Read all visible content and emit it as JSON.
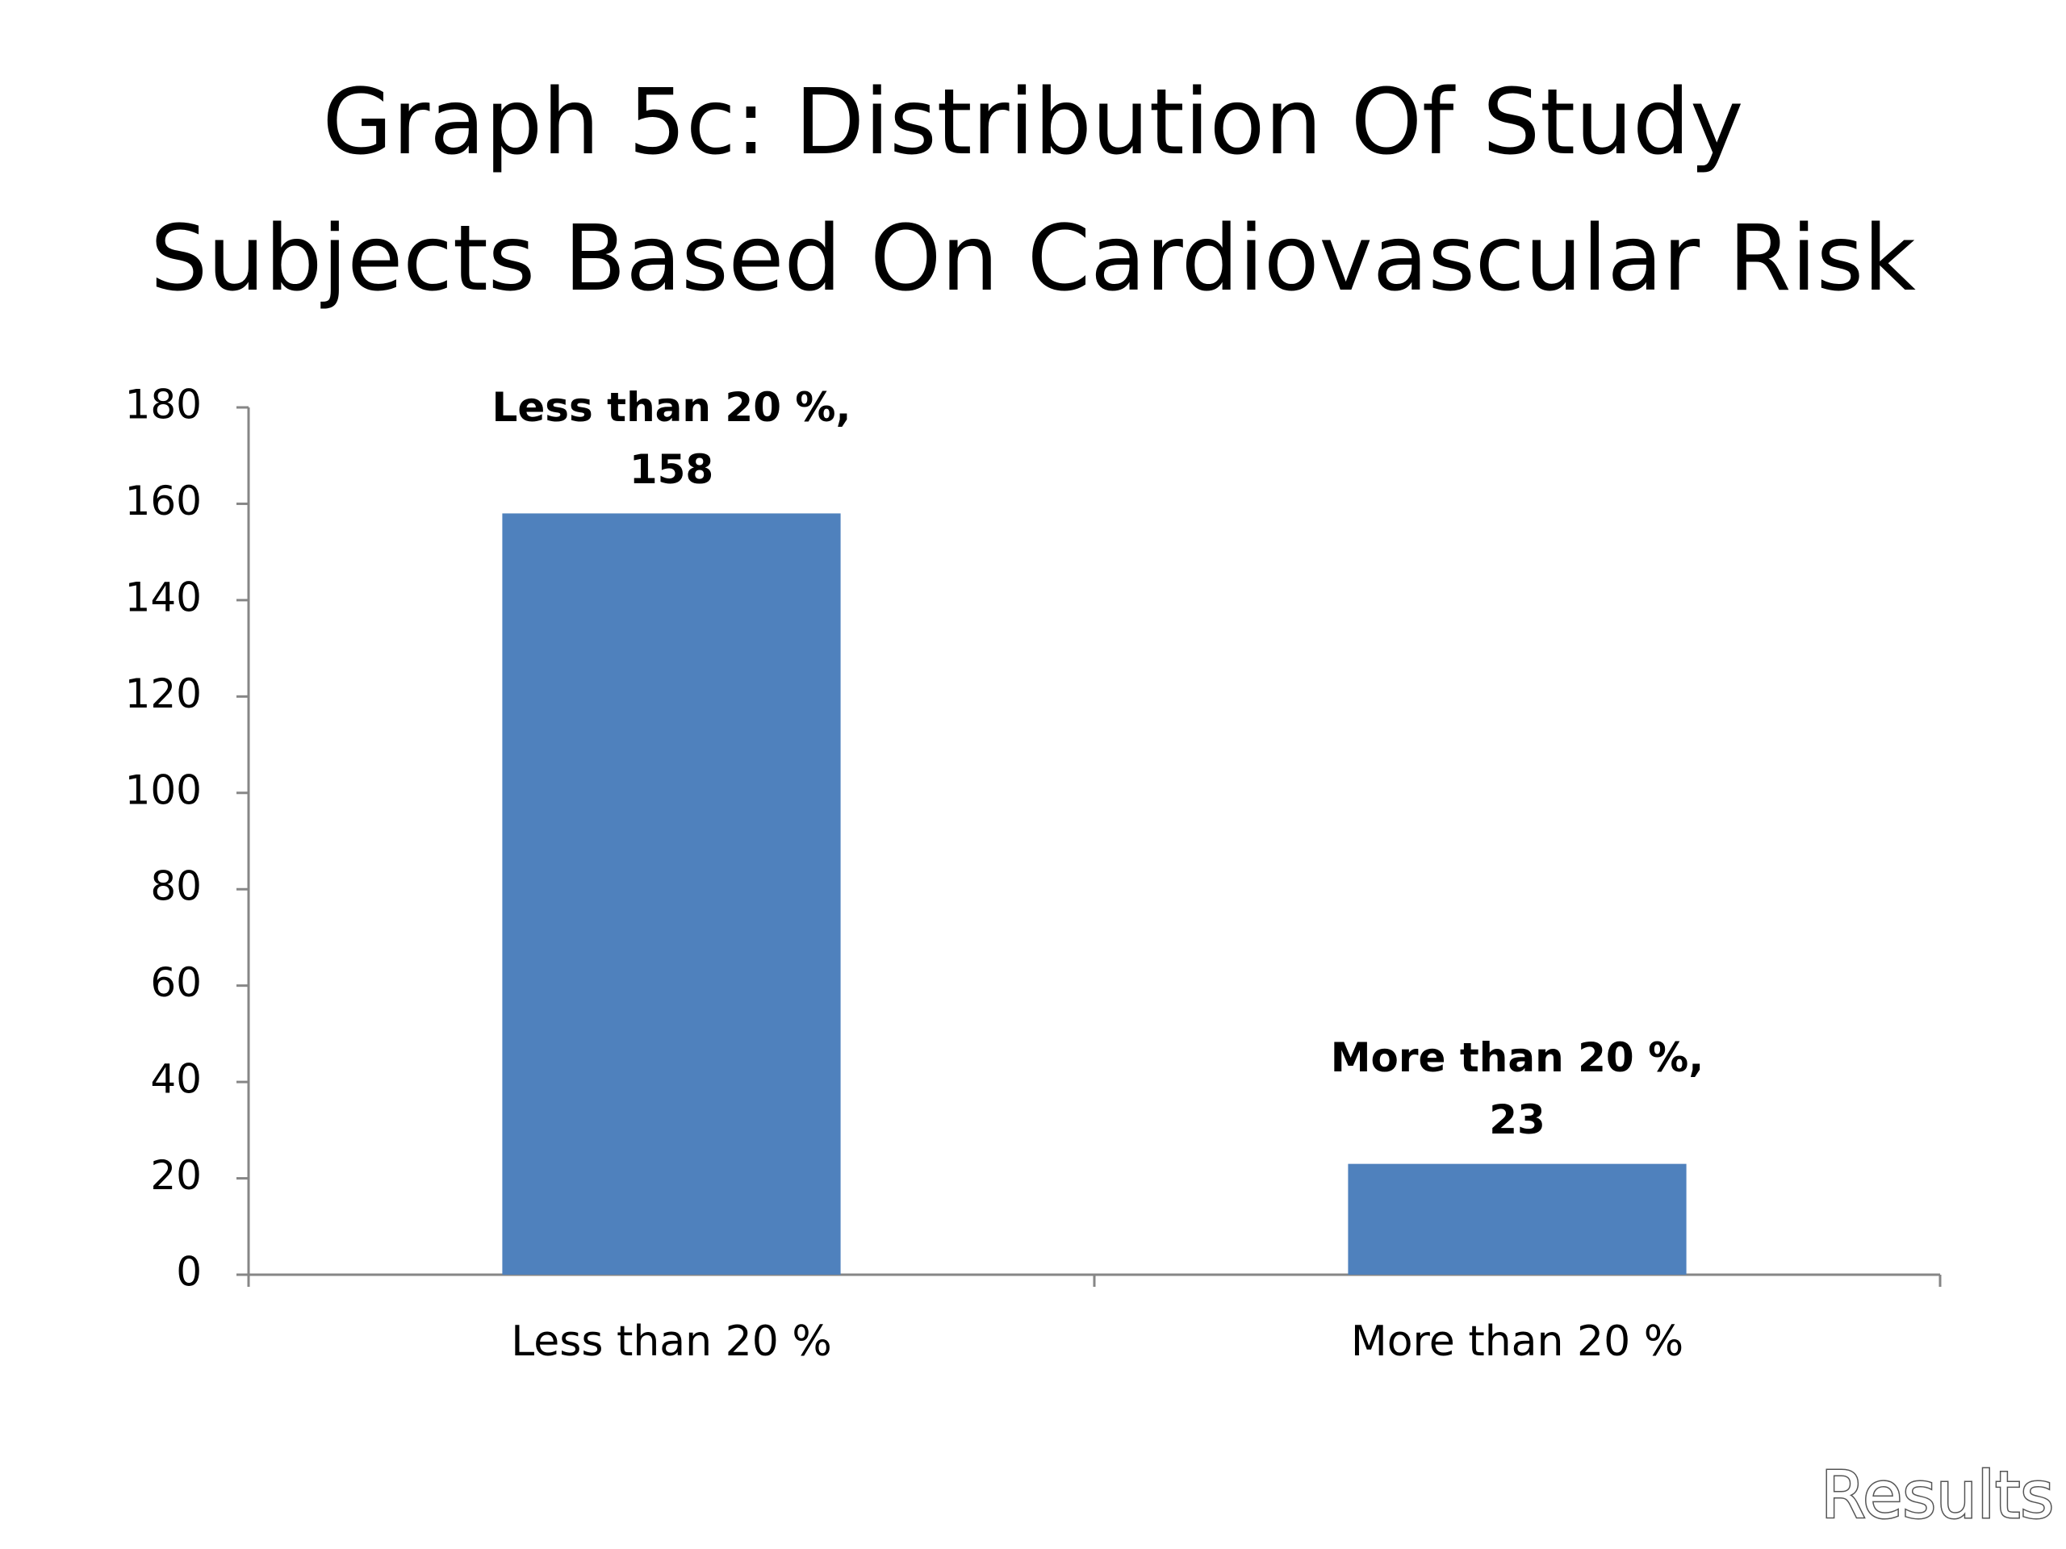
{
  "chart_data": {
    "type": "bar",
    "title": [
      "Graph 5c: Distribution Of Study",
      "Subjects Based On Cardiovascular Risk"
    ],
    "categories": [
      "Less than 20 %",
      "More than 20 %"
    ],
    "values": [
      158,
      23
    ],
    "data_label_names": [
      "Less than 20 %,",
      "More than 20 %,"
    ],
    "color": "#4f81bd",
    "ylim": [
      0,
      180
    ],
    "yticks": [
      0,
      20,
      40,
      60,
      80,
      100,
      120,
      140,
      160,
      180
    ],
    "grid": false,
    "footer": "Results"
  }
}
